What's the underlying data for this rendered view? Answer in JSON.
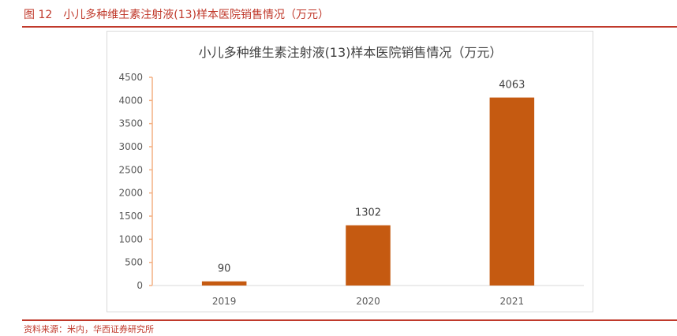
{
  "figure": {
    "number": "图 12",
    "caption": "小儿多种维生素注射液(13)样本医院销售情况（万元）",
    "source": "资料来源：米内，华西证券研究所"
  },
  "colors": {
    "accent": "#c0392b",
    "bar": "#c55a11",
    "axis": "#f4b183"
  },
  "chart_data": {
    "type": "bar",
    "title": "小儿多种维生素注射液(13)样本医院销售情况（万元）",
    "categories": [
      "2019",
      "2020",
      "2021"
    ],
    "values": [
      90,
      1302,
      4063
    ],
    "yticks": [
      0,
      500,
      1000,
      1500,
      2000,
      2500,
      3000,
      3500,
      4000,
      4500
    ],
    "ylim": [
      0,
      4500
    ],
    "xlabel": "",
    "ylabel": "",
    "grid": false,
    "legend": "none"
  }
}
